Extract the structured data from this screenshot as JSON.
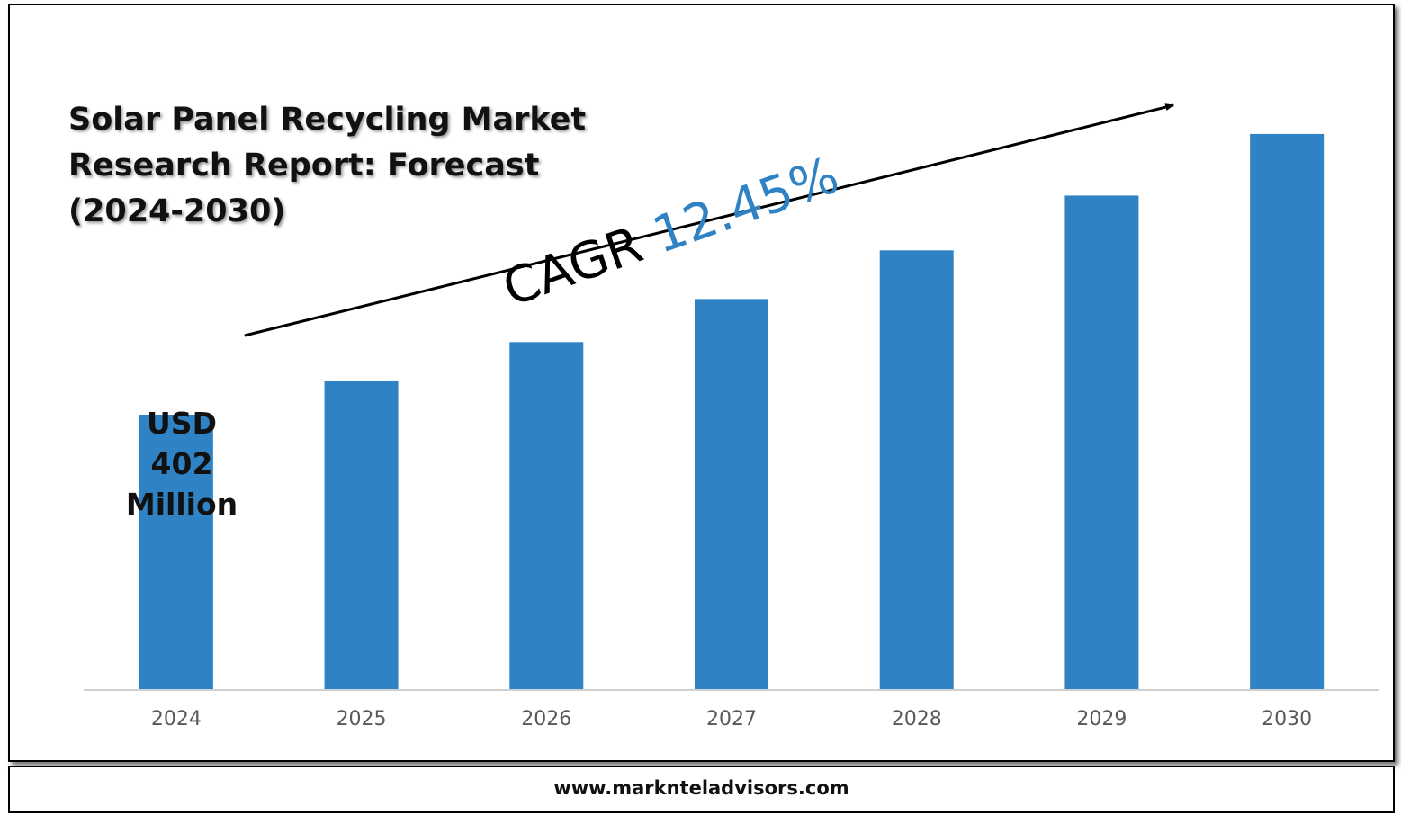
{
  "chart_data": {
    "type": "bar",
    "title": "Solar Panel Recycling Market Research Report: Forecast (2024-2030)",
    "categories": [
      "2024",
      "2025",
      "2026",
      "2027",
      "2028",
      "2029",
      "2030"
    ],
    "values": [
      402,
      452,
      508,
      571,
      642,
      722,
      812
    ],
    "ylim": [
      0,
      850
    ],
    "bar_color": "#2f82c4",
    "grid": false,
    "legend": "none",
    "annotations": {
      "start_value_label": [
        "USD",
        "402",
        "Million"
      ],
      "cagr_label": "CAGR",
      "cagr_value": "12.45%",
      "trend_arrow": "rising arrow from 2024 bar to beyond 2030 bar"
    }
  },
  "title_lines": [
    "Solar Panel Recycling Market",
    "Research Report: Forecast",
    "(2024-2030)"
  ],
  "footer": {
    "website": "www.marknteladvisors.com"
  },
  "colors": {
    "accent": "#2f82c4",
    "text": "#111111",
    "axis_line": "#d0d0d0"
  }
}
